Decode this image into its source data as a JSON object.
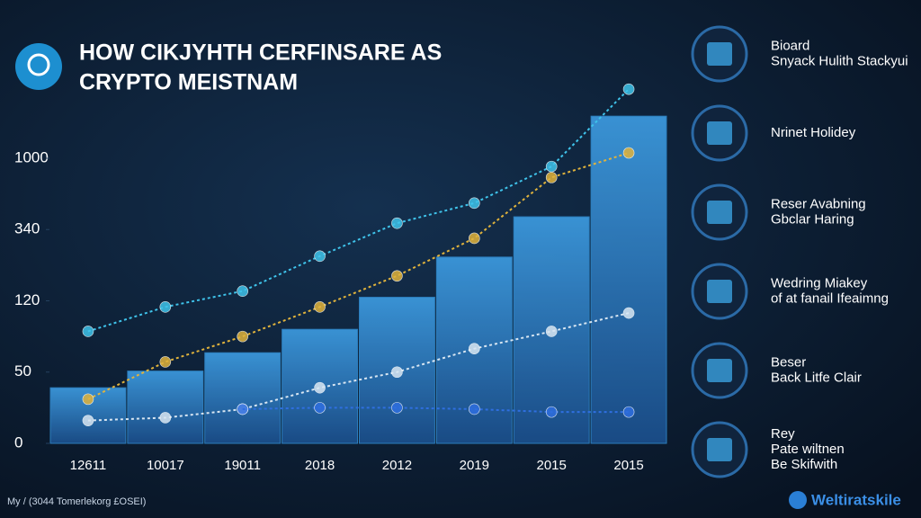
{
  "chart_data": {
    "type": "bar-line",
    "title": [
      "HOW CIKJYHTH CERFINSARE AS",
      "CRYPTO MEISTNAM"
    ],
    "categories": [
      "12611",
      "10017",
      "19011",
      "2018",
      "2012",
      "2019",
      "2015",
      "2015"
    ],
    "values": [
      39,
      51,
      69,
      92,
      131,
      255,
      458,
      1390
    ],
    "color": "#2f86c8",
    "series": [
      {
        "color": "#3fc3ea",
        "values": [
          90,
          114,
          150,
          258,
          399,
          585,
          924,
          1640
        ]
      },
      {
        "color": "#e0b33c",
        "values": [
          31,
          60,
          85,
          114,
          197,
          313,
          822,
          1050
        ]
      },
      {
        "color": "#d8e6f2",
        "values": [
          16,
          18,
          24,
          39,
          50,
          73,
          90,
          108
        ]
      },
      {
        "color": "#2f6fe0",
        "values": [
          null,
          null,
          24,
          25,
          25,
          24,
          22,
          22
        ]
      }
    ],
    "ylim": [
      0,
      1700
    ],
    "yticks": [
      0,
      50,
      120,
      340,
      1000
    ]
  },
  "sidebar": [
    {
      "lines": [
        "Bioard",
        "Snyack Hulith Stackyui"
      ]
    },
    {
      "lines": [
        "Nrinet Holidey"
      ]
    },
    {
      "lines": [
        "Reser Avabning",
        "Gbclar Haring"
      ]
    },
    {
      "lines": [
        "Wedring Miakey",
        "of at fanail Ifeaimng"
      ]
    },
    {
      "lines": [
        "Beser",
        "Back Litfe Clair"
      ]
    },
    {
      "lines": [
        "Rey",
        "Pate wiltnen",
        "Be Skifwith"
      ]
    }
  ],
  "footer": {
    "left": "My / (3044 Tomerlekorg £OSEI)",
    "brand": "Weltiratskile"
  }
}
